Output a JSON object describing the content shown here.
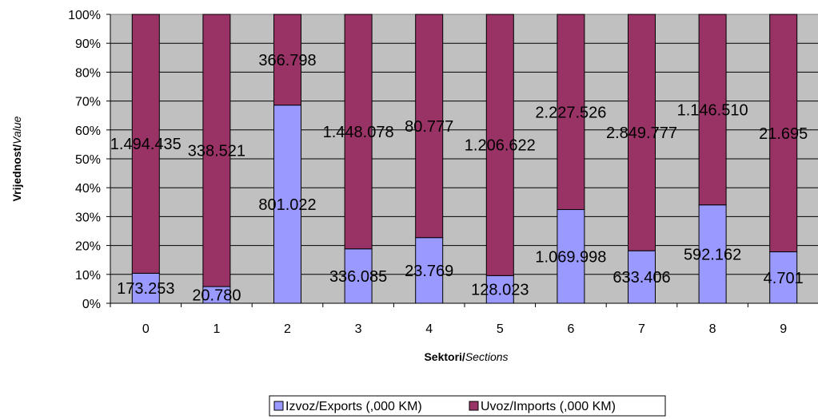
{
  "chart_data": {
    "type": "bar",
    "stacked": "percent",
    "categories": [
      "0",
      "1",
      "2",
      "3",
      "4",
      "5",
      "6",
      "7",
      "8",
      "9"
    ],
    "series": [
      {
        "name": "Izvoz/Exports (,000 KM)",
        "color": "#9999ff",
        "values": [
          173253,
          20780,
          801022,
          336085,
          23769,
          128023,
          1069998,
          633406,
          592162,
          4701
        ],
        "labels": [
          "173.253",
          "20.780",
          "801.022",
          "336.085",
          "23.769",
          "128.023",
          "1.069.998",
          "633.406",
          "592.162",
          "4.701"
        ]
      },
      {
        "name": "Uvoz/Imports (,000 KM)",
        "color": "#993366",
        "values": [
          1494435,
          338521,
          366798,
          1448078,
          80777,
          1206622,
          2227526,
          2849777,
          1146510,
          21695
        ],
        "labels": [
          "1.494.435",
          "338.521",
          "366.798",
          "1.448.078",
          "80.777",
          "1.206.622",
          "2.227.526",
          "2.849.777",
          "1.146.510",
          "21.695"
        ]
      }
    ],
    "yticks": [
      "0%",
      "10%",
      "20%",
      "30%",
      "40%",
      "50%",
      "60%",
      "70%",
      "80%",
      "90%",
      "100%"
    ],
    "ylim": [
      0,
      100
    ],
    "xlabel_bold": "Sektori/",
    "xlabel_italic": "Sections",
    "ylabel_bold": "Vrijednost/",
    "ylabel_italic": "Value",
    "grid": true,
    "plot_background": "#c0c0c0",
    "legend_position": "bottom"
  }
}
